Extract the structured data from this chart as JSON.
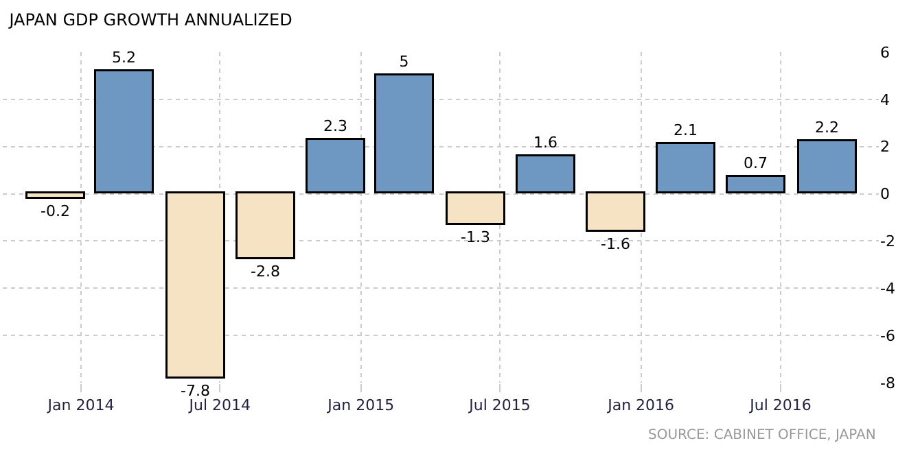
{
  "chart_data": {
    "type": "bar",
    "title": "JAPAN GDP GROWTH ANNUALIZED",
    "x": [
      "2013-11-30",
      "2014-02-28",
      "2014-05-31",
      "2014-08-31",
      "2014-11-30",
      "2015-02-28",
      "2015-05-31",
      "2015-08-31",
      "2015-11-30",
      "2016-02-29",
      "2016-05-31",
      "2016-08-31"
    ],
    "values": [
      -0.2,
      5.2,
      -7.8,
      -2.8,
      2.3,
      5,
      -1.3,
      1.6,
      -1.6,
      2.1,
      0.7,
      2.2
    ],
    "colors": [
      "#f5e3c4",
      "#6e98c2",
      "#f5e3c4",
      "#f5e3c4",
      "#6e98c2",
      "#6e98c2",
      "#f5e3c4",
      "#6e98c2",
      "#f5e3c4",
      "#6e98c2",
      "#6e98c2",
      "#6e98c2"
    ],
    "data_labels": true,
    "xlim": [
      "2013-09-21",
      "2016-11-06"
    ],
    "xticks": [
      {
        "value": "2014-01-01",
        "label": "Jan 2014"
      },
      {
        "value": "2014-07-01",
        "label": "Jul 2014"
      },
      {
        "value": "2015-01-01",
        "label": "Jan 2015"
      },
      {
        "value": "2015-07-01",
        "label": "Jul 2015"
      },
      {
        "value": "2016-01-01",
        "label": "Jan 2016"
      },
      {
        "value": "2016-07-01",
        "label": "Jul 2016"
      }
    ],
    "ylim": [
      -8,
      6
    ],
    "yticks": [
      -8,
      -6,
      -4,
      -2,
      0,
      2,
      4,
      6
    ],
    "grid": true,
    "annotations": [
      "SOURCE: CABINET OFFICE, JAPAN"
    ]
  }
}
